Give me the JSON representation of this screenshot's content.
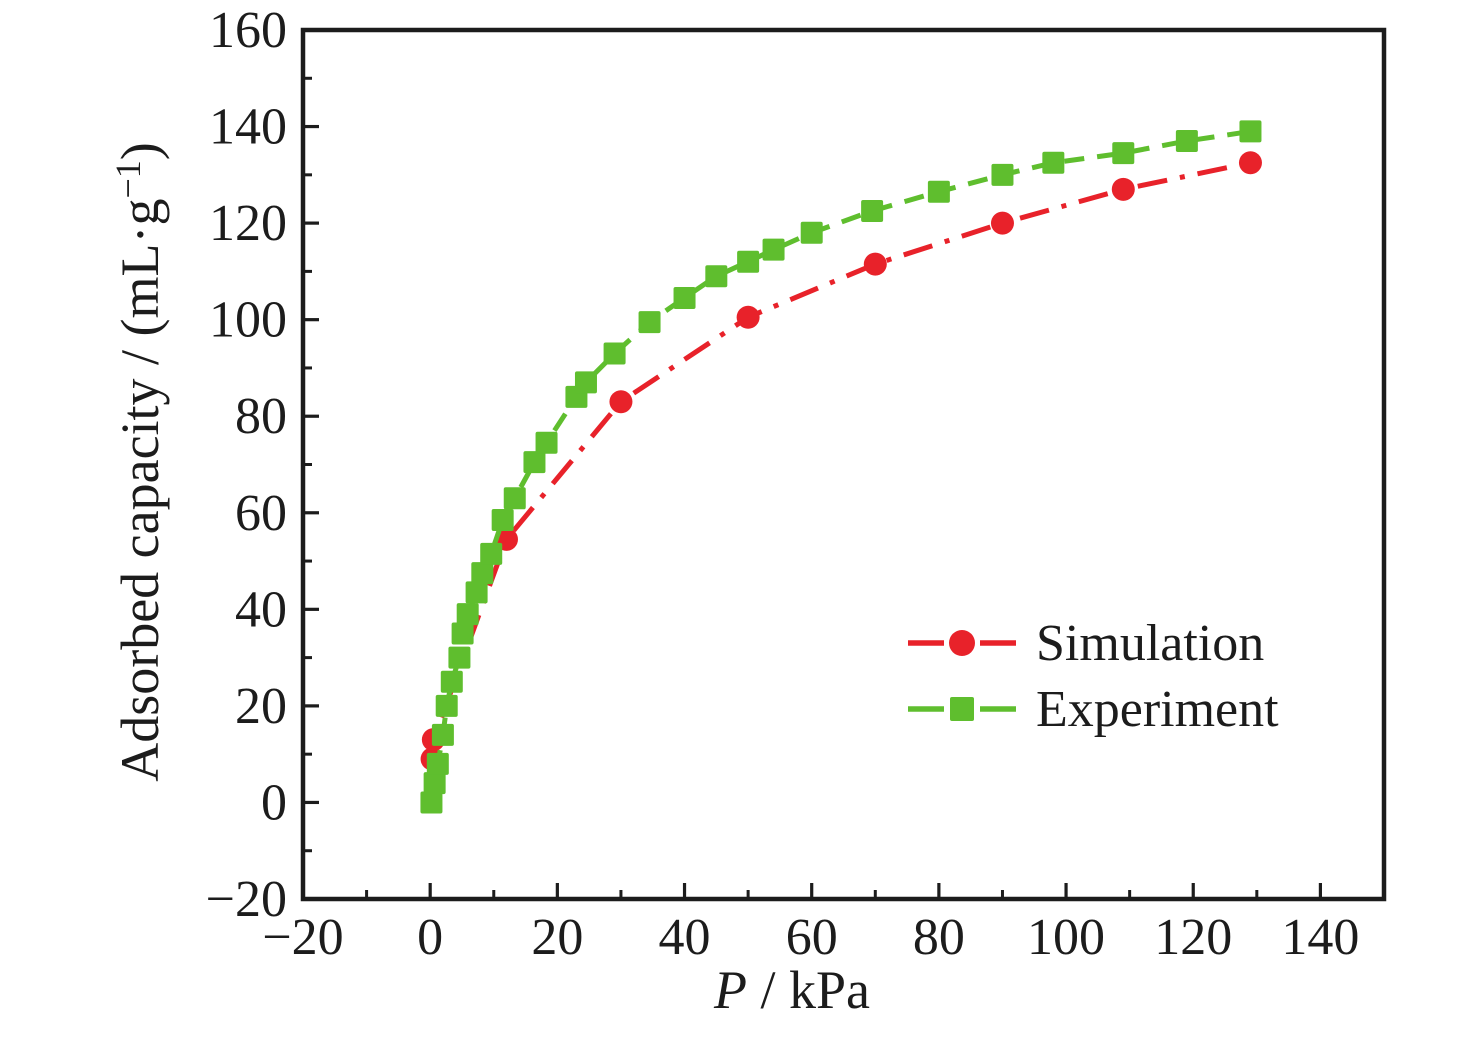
{
  "figure": {
    "background": "#ffffff",
    "axis_color": "#1c1c1c"
  },
  "chart_data": {
    "type": "line",
    "title": "",
    "xlabel": "P / kPa",
    "xlabel_parts": {
      "italic": "P",
      "rest": " / kPa"
    },
    "ylabel": "Adsorbed capacity / (mL·g⁻¹)",
    "ylabel_parts": {
      "main": "Adsorbed capacity / (mL·g",
      "sup": "−1",
      "close": ")"
    },
    "xlim": [
      -20,
      150
    ],
    "ylim": [
      -20,
      160
    ],
    "x_major_ticks": [
      -20,
      0,
      20,
      40,
      60,
      80,
      100,
      120,
      140
    ],
    "y_major_ticks": [
      -20,
      0,
      20,
      40,
      60,
      80,
      100,
      120,
      140,
      160
    ],
    "minor_tick_step": 10,
    "tick_direction": "in",
    "grid": false,
    "legend_position": "inside lower-right",
    "legend": [
      "Simulation",
      "Experiment"
    ],
    "series": [
      {
        "name": "Simulation",
        "color": "#e8222a",
        "marker": "circle",
        "linestyle": "dash-dot",
        "points": [
          [
            0.3,
            9
          ],
          [
            0.5,
            13
          ],
          [
            12,
            54.5
          ],
          [
            30,
            83
          ],
          [
            50,
            100.5
          ],
          [
            70,
            111.5
          ],
          [
            90,
            120
          ],
          [
            109,
            127
          ],
          [
            129,
            132.5
          ]
        ]
      },
      {
        "name": "Experiment",
        "color": "#5fbe2e",
        "marker": "square",
        "linestyle": "dashed",
        "points": [
          [
            0.2,
            0
          ],
          [
            0.7,
            4
          ],
          [
            1.2,
            8
          ],
          [
            2.0,
            14
          ],
          [
            2.6,
            20
          ],
          [
            3.4,
            25
          ],
          [
            4.6,
            30
          ],
          [
            5.1,
            35
          ],
          [
            5.9,
            39
          ],
          [
            7.3,
            43.5
          ],
          [
            8.2,
            47.5
          ],
          [
            9.6,
            51.5
          ],
          [
            11.4,
            58.5
          ],
          [
            13.3,
            63
          ],
          [
            16.4,
            70.5
          ],
          [
            18.3,
            74.5
          ],
          [
            23,
            84
          ],
          [
            24.5,
            87
          ],
          [
            29,
            93
          ],
          [
            34.5,
            99.5
          ],
          [
            40,
            104.5
          ],
          [
            45,
            109
          ],
          [
            50,
            112
          ],
          [
            54,
            114.5
          ],
          [
            60,
            118
          ],
          [
            69.5,
            122.5
          ],
          [
            80,
            126.5
          ],
          [
            90,
            130
          ],
          [
            98,
            132.5
          ],
          [
            109,
            134.5
          ],
          [
            119,
            137
          ],
          [
            129,
            139
          ]
        ]
      }
    ]
  }
}
